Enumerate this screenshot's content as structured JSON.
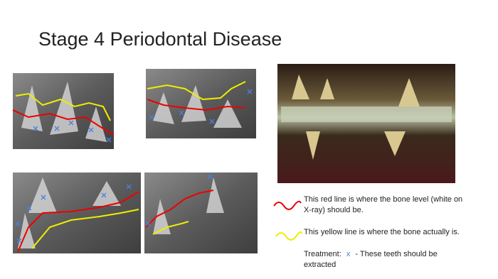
{
  "title": "Stage 4 Periodontal Disease",
  "legend": {
    "red": "This red line is where the bone level (white on X-ray) should be.",
    "yellow": "This yellow line is where the bone actually is.",
    "treatment": {
      "label": "Treatment:",
      "marker": "x",
      "text": "- These teeth should be extracted"
    }
  }
}
